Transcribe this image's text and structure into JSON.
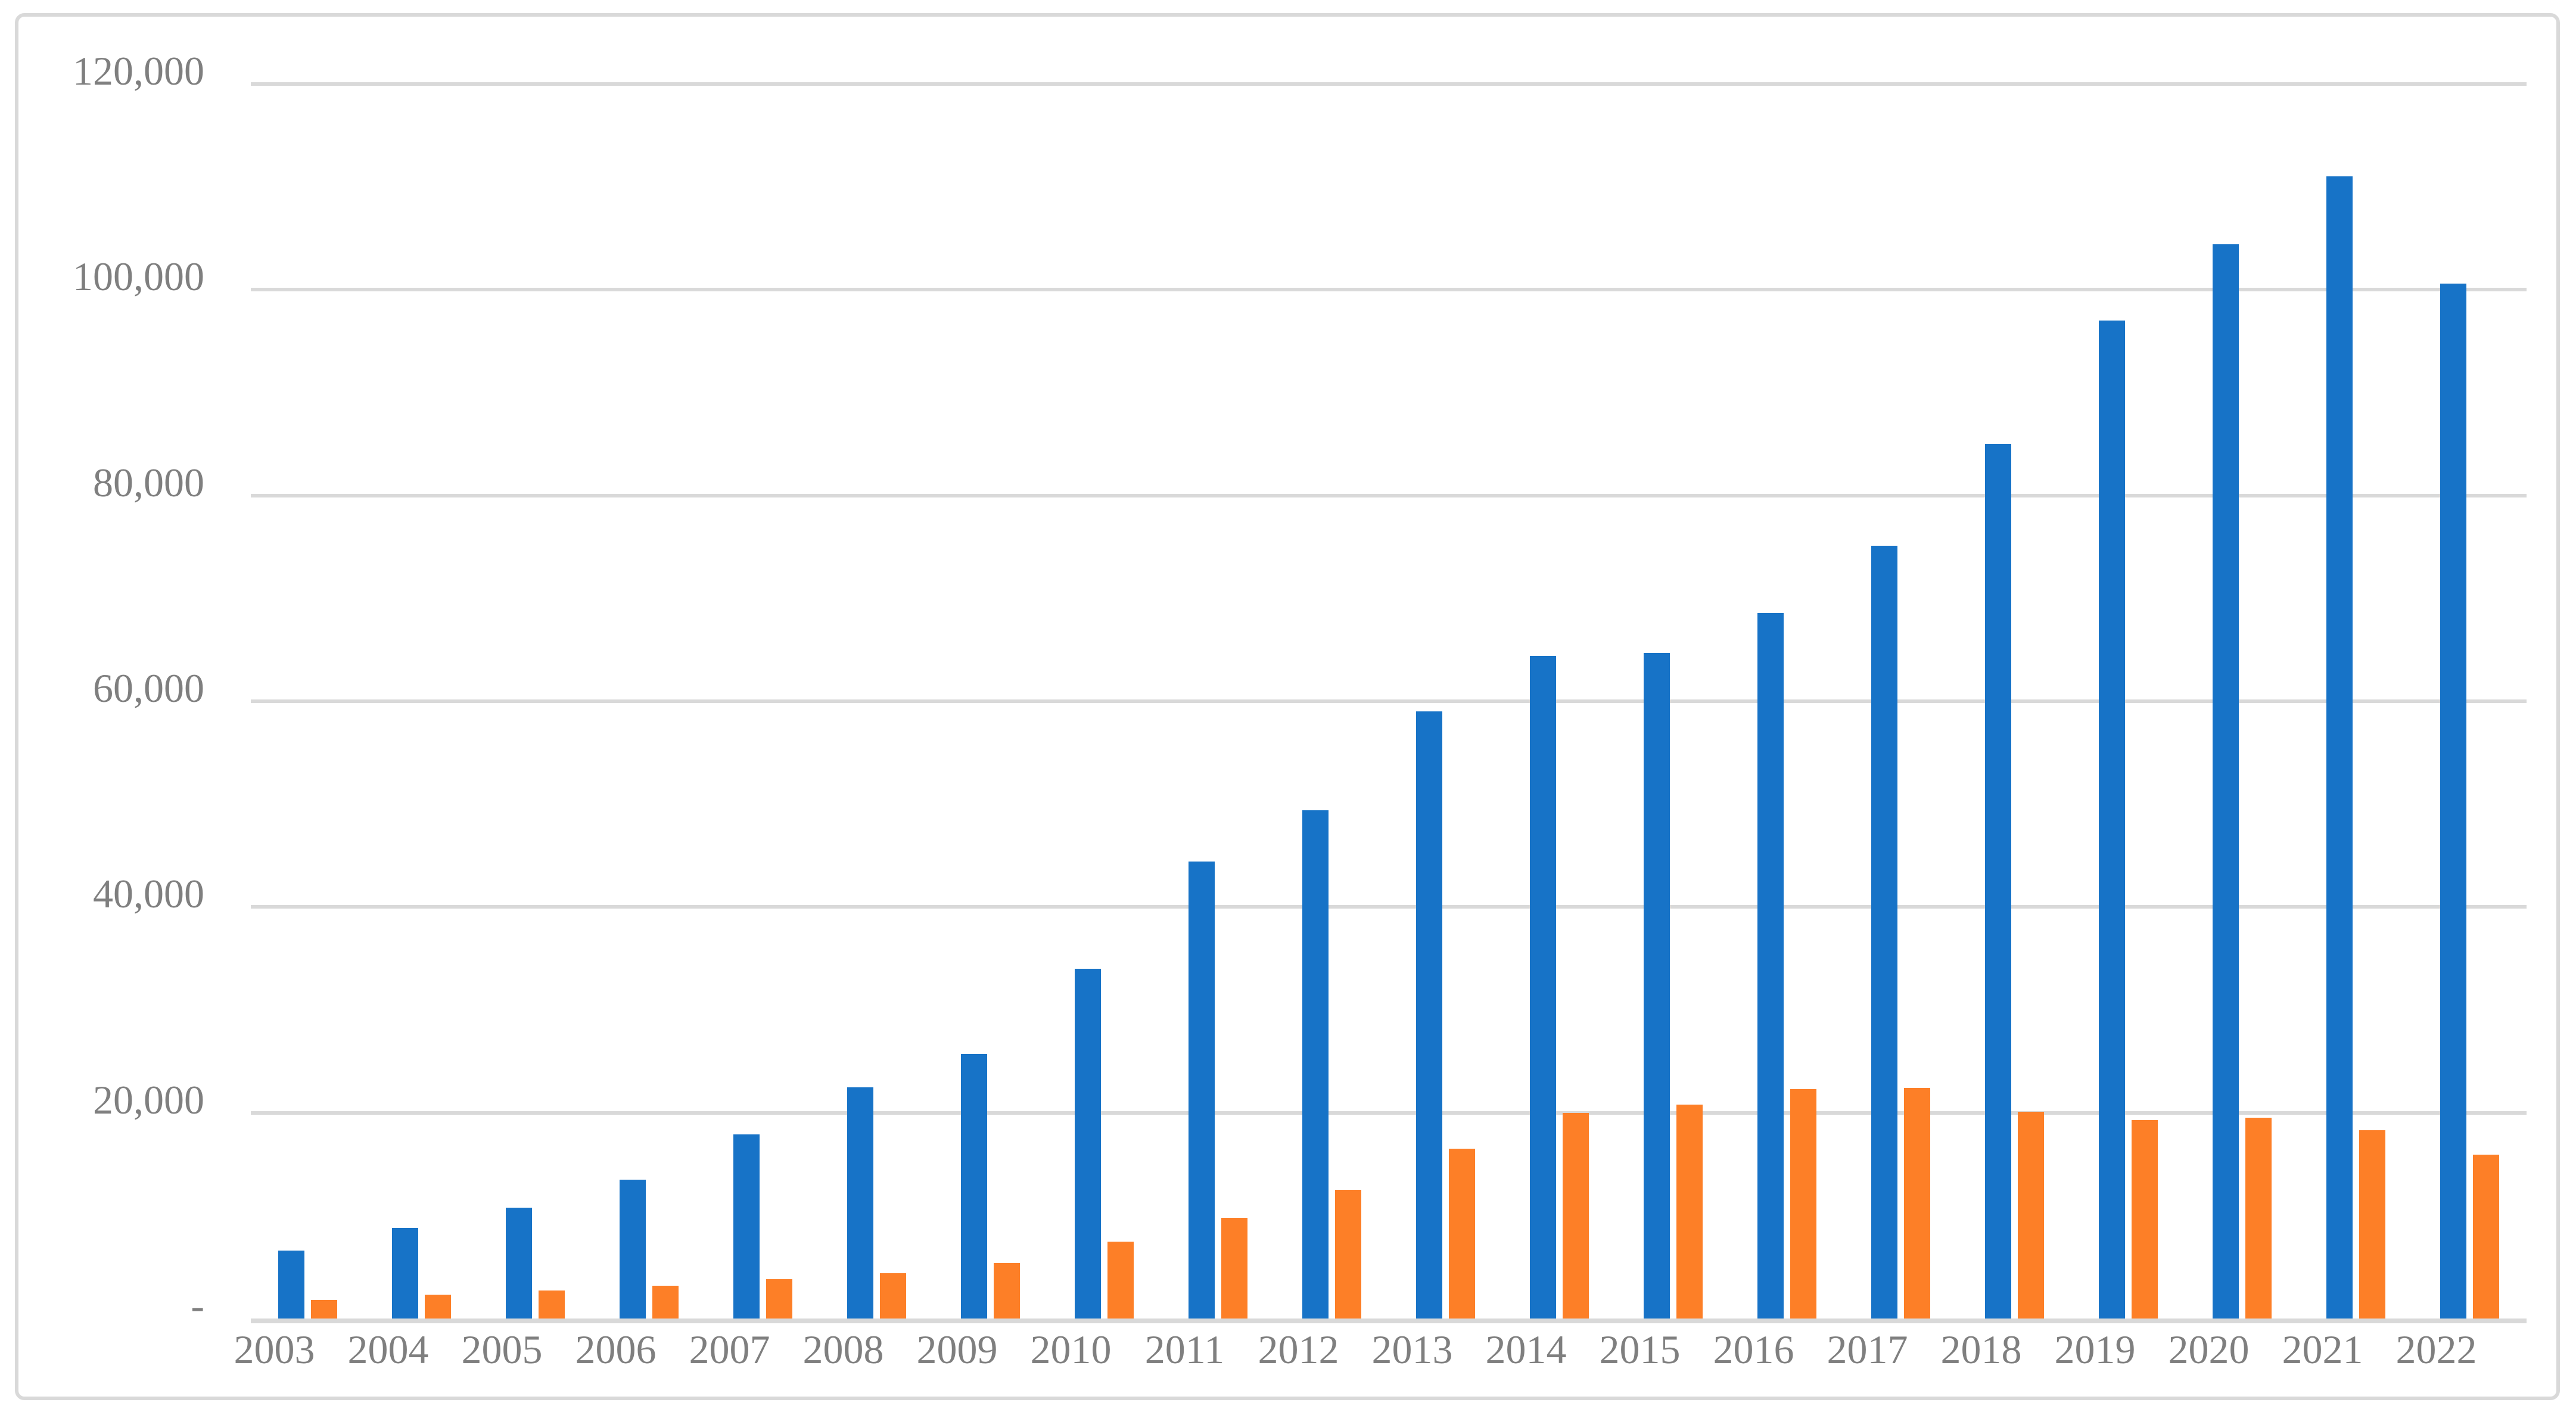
{
  "chart_data": {
    "type": "bar",
    "title": "",
    "xlabel": "",
    "ylabel": "",
    "grid": true,
    "legend": false,
    "ylim": [
      0,
      120000
    ],
    "categories": [
      "2003",
      "2004",
      "2005",
      "2006",
      "2007",
      "2008",
      "2009",
      "2010",
      "2011",
      "2012",
      "2013",
      "2014",
      "2015",
      "2016",
      "2017",
      "2018",
      "2019",
      "2020",
      "2021",
      "2022"
    ],
    "series": [
      {
        "name": "blue-series",
        "color": "#1773C7",
        "values": [
          6600,
          8800,
          10800,
          13500,
          17900,
          22500,
          25700,
          34000,
          44400,
          49400,
          59000,
          64400,
          64700,
          68600,
          75100,
          85000,
          97000,
          104400,
          111000,
          100600
        ]
      },
      {
        "name": "orange-series",
        "color": "#FD7F27",
        "values": [
          1800,
          2300,
          2700,
          3200,
          3800,
          4400,
          5400,
          7500,
          9800,
          12500,
          16500,
          20000,
          20800,
          22300,
          22400,
          20100,
          19300,
          19500,
          18300,
          15900
        ]
      }
    ],
    "yticks": [
      {
        "value": 120000,
        "label": "120,000"
      },
      {
        "value": 100000,
        "label": "100,000"
      },
      {
        "value": 80000,
        "label": "80,000"
      },
      {
        "value": 60000,
        "label": "60,000"
      },
      {
        "value": 40000,
        "label": "40,000"
      },
      {
        "value": 20000,
        "label": "20,000"
      },
      {
        "value": 0,
        "label": "-"
      }
    ]
  },
  "style": {
    "gridline_color": "#D9D9D9",
    "tick_label_color": "#7f7f7f",
    "frame_border_color": "#D9D9D9",
    "background": "#ffffff"
  }
}
